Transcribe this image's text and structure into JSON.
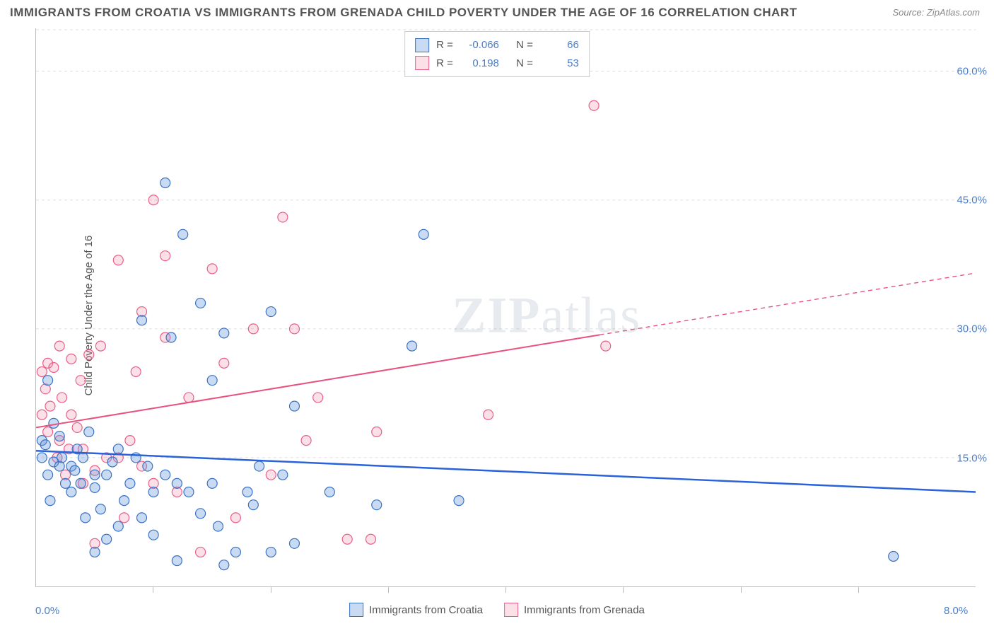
{
  "title": "IMMIGRANTS FROM CROATIA VS IMMIGRANTS FROM GRENADA CHILD POVERTY UNDER THE AGE OF 16 CORRELATION CHART",
  "source": "Source: ZipAtlas.com",
  "y_axis_label": "Child Poverty Under the Age of 16",
  "watermark_a": "ZIP",
  "watermark_b": "atlas",
  "chart": {
    "type": "scatter",
    "background_color": "#ffffff",
    "grid_color": "#dddddd",
    "axis_color": "#bbbbbb",
    "xlim": [
      0.0,
      8.0
    ],
    "ylim": [
      0.0,
      65.0
    ],
    "x_ticks_minor": [
      1,
      2,
      3,
      4,
      5,
      6,
      7
    ],
    "x_tick_labels": [
      {
        "v": 0.0,
        "label": "0.0%"
      },
      {
        "v": 8.0,
        "label": "8.0%"
      }
    ],
    "y_ticks": [
      {
        "v": 15.0,
        "label": "15.0%"
      },
      {
        "v": 30.0,
        "label": "30.0%"
      },
      {
        "v": 45.0,
        "label": "45.0%"
      },
      {
        "v": 60.0,
        "label": "60.0%"
      }
    ],
    "tick_fontsize": 15,
    "tick_color": "#4a7ec9",
    "title_fontsize": 17,
    "title_color": "#555555",
    "series": [
      {
        "name": "Immigrants from Croatia",
        "marker_fill": "rgba(100,150,220,0.35)",
        "marker_stroke": "#3a72c4",
        "marker_radius": 7,
        "trend_color": "#2962d9",
        "trend_width": 2.5,
        "trend_dash_after_x": 8.0,
        "trend": {
          "x1": 0.0,
          "y1": 15.8,
          "x2": 8.0,
          "y2": 11.0
        },
        "legend_stats": {
          "R": "-0.066",
          "N": "66"
        },
        "points": [
          [
            0.05,
            17.0
          ],
          [
            0.05,
            15.0
          ],
          [
            0.08,
            16.5
          ],
          [
            0.1,
            13.0
          ],
          [
            0.1,
            24.0
          ],
          [
            0.12,
            10.0
          ],
          [
            0.15,
            14.5
          ],
          [
            0.15,
            19.0
          ],
          [
            0.2,
            17.5
          ],
          [
            0.2,
            14.0
          ],
          [
            0.22,
            15.0
          ],
          [
            0.25,
            12.0
          ],
          [
            0.3,
            14.0
          ],
          [
            0.3,
            11.0
          ],
          [
            0.33,
            13.5
          ],
          [
            0.35,
            16.0
          ],
          [
            0.38,
            12.0
          ],
          [
            0.4,
            15.0
          ],
          [
            0.42,
            8.0
          ],
          [
            0.45,
            18.0
          ],
          [
            0.5,
            11.5
          ],
          [
            0.5,
            13.0
          ],
          [
            0.5,
            4.0
          ],
          [
            0.55,
            9.0
          ],
          [
            0.6,
            13.0
          ],
          [
            0.6,
            5.5
          ],
          [
            0.65,
            14.5
          ],
          [
            0.7,
            16.0
          ],
          [
            0.7,
            7.0
          ],
          [
            0.75,
            10.0
          ],
          [
            0.8,
            12.0
          ],
          [
            0.85,
            15.0
          ],
          [
            0.9,
            8.0
          ],
          [
            0.9,
            31.0
          ],
          [
            0.95,
            14.0
          ],
          [
            1.0,
            11.0
          ],
          [
            1.0,
            6.0
          ],
          [
            1.1,
            47.0
          ],
          [
            1.1,
            13.0
          ],
          [
            1.15,
            29.0
          ],
          [
            1.2,
            12.0
          ],
          [
            1.2,
            3.0
          ],
          [
            1.25,
            41.0
          ],
          [
            1.3,
            11.0
          ],
          [
            1.4,
            33.0
          ],
          [
            1.4,
            8.5
          ],
          [
            1.5,
            12.0
          ],
          [
            1.5,
            24.0
          ],
          [
            1.55,
            7.0
          ],
          [
            1.6,
            29.5
          ],
          [
            1.6,
            2.5
          ],
          [
            1.7,
            4.0
          ],
          [
            1.8,
            11.0
          ],
          [
            1.85,
            9.5
          ],
          [
            1.9,
            14.0
          ],
          [
            2.0,
            32.0
          ],
          [
            2.0,
            4.0
          ],
          [
            2.1,
            13.0
          ],
          [
            2.2,
            21.0
          ],
          [
            2.2,
            5.0
          ],
          [
            2.5,
            11.0
          ],
          [
            2.9,
            9.5
          ],
          [
            3.2,
            28.0
          ],
          [
            3.3,
            41.0
          ],
          [
            3.6,
            10.0
          ],
          [
            7.3,
            3.5
          ]
        ]
      },
      {
        "name": "Immigrants from Grenada",
        "marker_fill": "rgba(240,130,160,0.25)",
        "marker_stroke": "#e95f8a",
        "marker_radius": 7,
        "trend_color": "#e8527f",
        "trend_width": 2,
        "trend_dash_after_x": 4.8,
        "trend": {
          "x1": 0.0,
          "y1": 18.5,
          "x2": 8.0,
          "y2": 36.5
        },
        "legend_stats": {
          "R": "0.198",
          "N": "53"
        },
        "points": [
          [
            0.05,
            20.0
          ],
          [
            0.05,
            25.0
          ],
          [
            0.08,
            23.0
          ],
          [
            0.1,
            18.0
          ],
          [
            0.1,
            26.0
          ],
          [
            0.12,
            21.0
          ],
          [
            0.15,
            25.5
          ],
          [
            0.18,
            15.0
          ],
          [
            0.2,
            17.0
          ],
          [
            0.2,
            28.0
          ],
          [
            0.22,
            22.0
          ],
          [
            0.25,
            13.0
          ],
          [
            0.28,
            16.0
          ],
          [
            0.3,
            20.0
          ],
          [
            0.3,
            26.5
          ],
          [
            0.35,
            18.5
          ],
          [
            0.38,
            24.0
          ],
          [
            0.4,
            12.0
          ],
          [
            0.4,
            16.0
          ],
          [
            0.45,
            27.0
          ],
          [
            0.5,
            13.5
          ],
          [
            0.5,
            5.0
          ],
          [
            0.55,
            28.0
          ],
          [
            0.6,
            15.0
          ],
          [
            0.7,
            38.0
          ],
          [
            0.7,
            15.0
          ],
          [
            0.75,
            8.0
          ],
          [
            0.8,
            17.0
          ],
          [
            0.85,
            25.0
          ],
          [
            0.9,
            32.0
          ],
          [
            0.9,
            14.0
          ],
          [
            1.0,
            45.0
          ],
          [
            1.0,
            12.0
          ],
          [
            1.1,
            38.5
          ],
          [
            1.1,
            29.0
          ],
          [
            1.2,
            11.0
          ],
          [
            1.3,
            22.0
          ],
          [
            1.4,
            4.0
          ],
          [
            1.5,
            37.0
          ],
          [
            1.6,
            26.0
          ],
          [
            1.7,
            8.0
          ],
          [
            1.85,
            30.0
          ],
          [
            2.0,
            13.0
          ],
          [
            2.1,
            43.0
          ],
          [
            2.2,
            30.0
          ],
          [
            2.3,
            17.0
          ],
          [
            2.4,
            22.0
          ],
          [
            2.65,
            5.5
          ],
          [
            2.85,
            5.5
          ],
          [
            2.9,
            18.0
          ],
          [
            3.85,
            20.0
          ],
          [
            4.75,
            56.0
          ],
          [
            4.85,
            28.0
          ]
        ]
      }
    ],
    "legend_bottom": [
      {
        "label": "Immigrants from Croatia",
        "fill": "rgba(100,150,220,0.35)",
        "stroke": "#3a72c4"
      },
      {
        "label": "Immigrants from Grenada",
        "fill": "rgba(240,130,160,0.25)",
        "stroke": "#e95f8a"
      }
    ]
  },
  "legend_top_labels": {
    "R": "R =",
    "N": "N ="
  }
}
